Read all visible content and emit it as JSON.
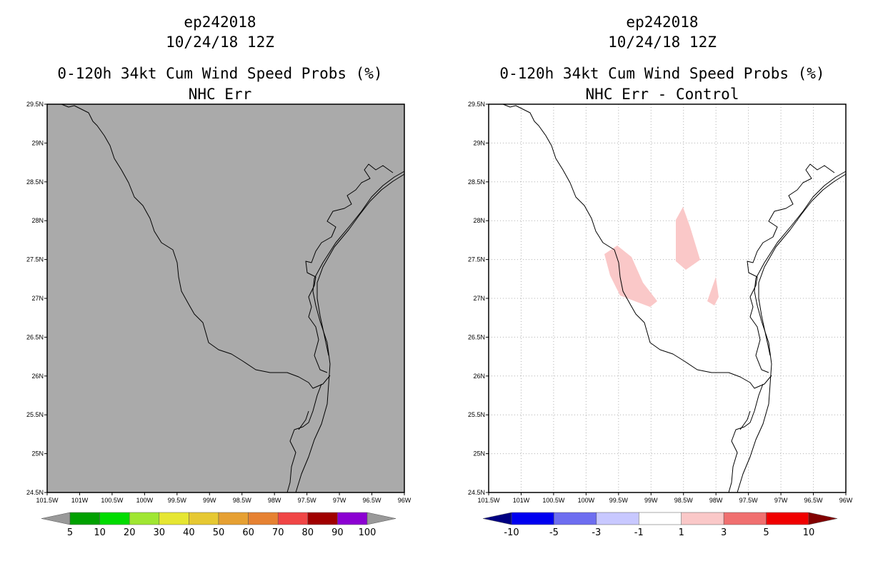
{
  "panels": [
    {
      "id": "left",
      "title_lines": [
        "ep242018",
        "10/24/18 12Z",
        "0-120h 34kt Cum Wind Speed Probs (%)",
        "NHC Err"
      ],
      "background": "#aaaaaa",
      "grid": false,
      "colorbar": {
        "colors": [
          "#999999",
          "#00a000",
          "#00dc00",
          "#a0e632",
          "#e6e632",
          "#e6c832",
          "#e6a032",
          "#e68232",
          "#f04646",
          "#a00000",
          "#8c00d2",
          "#999999"
        ],
        "labels": [
          "5",
          "10",
          "20",
          "30",
          "40",
          "50",
          "60",
          "70",
          "80",
          "90",
          "100"
        ]
      }
    },
    {
      "id": "right",
      "title_lines": [
        "ep242018",
        "10/24/18 12Z",
        "0-120h 34kt Cum Wind Speed Probs (%)",
        "NHC Err - Control"
      ],
      "background": "#ffffff",
      "grid": true,
      "shading_color": "#fac8c8",
      "colorbar": {
        "colors": [
          "#000082",
          "#0000f0",
          "#6e6ef0",
          "#c8c8ff",
          "#ffffff",
          "#fac8c8",
          "#f07070",
          "#f00000",
          "#820000"
        ],
        "labels": [
          "-10",
          "-5",
          "-3",
          "-1",
          "1",
          "3",
          "5",
          "10"
        ]
      }
    }
  ],
  "axes": {
    "lon_labels": [
      "101.5W",
      "101W",
      "100.5W",
      "100W",
      "99.5W",
      "99W",
      "98.5W",
      "98W",
      "97.5W",
      "97W",
      "96.5W",
      "96W"
    ],
    "lat_labels": [
      "29.5N",
      "29N",
      "28.5N",
      "28N",
      "27.5N",
      "27N",
      "26.5N",
      "26N",
      "25.5N",
      "25N",
      "24.5N"
    ],
    "lon_range": [
      -101.5,
      -96.0
    ],
    "lat_range": [
      24.5,
      29.5
    ]
  }
}
